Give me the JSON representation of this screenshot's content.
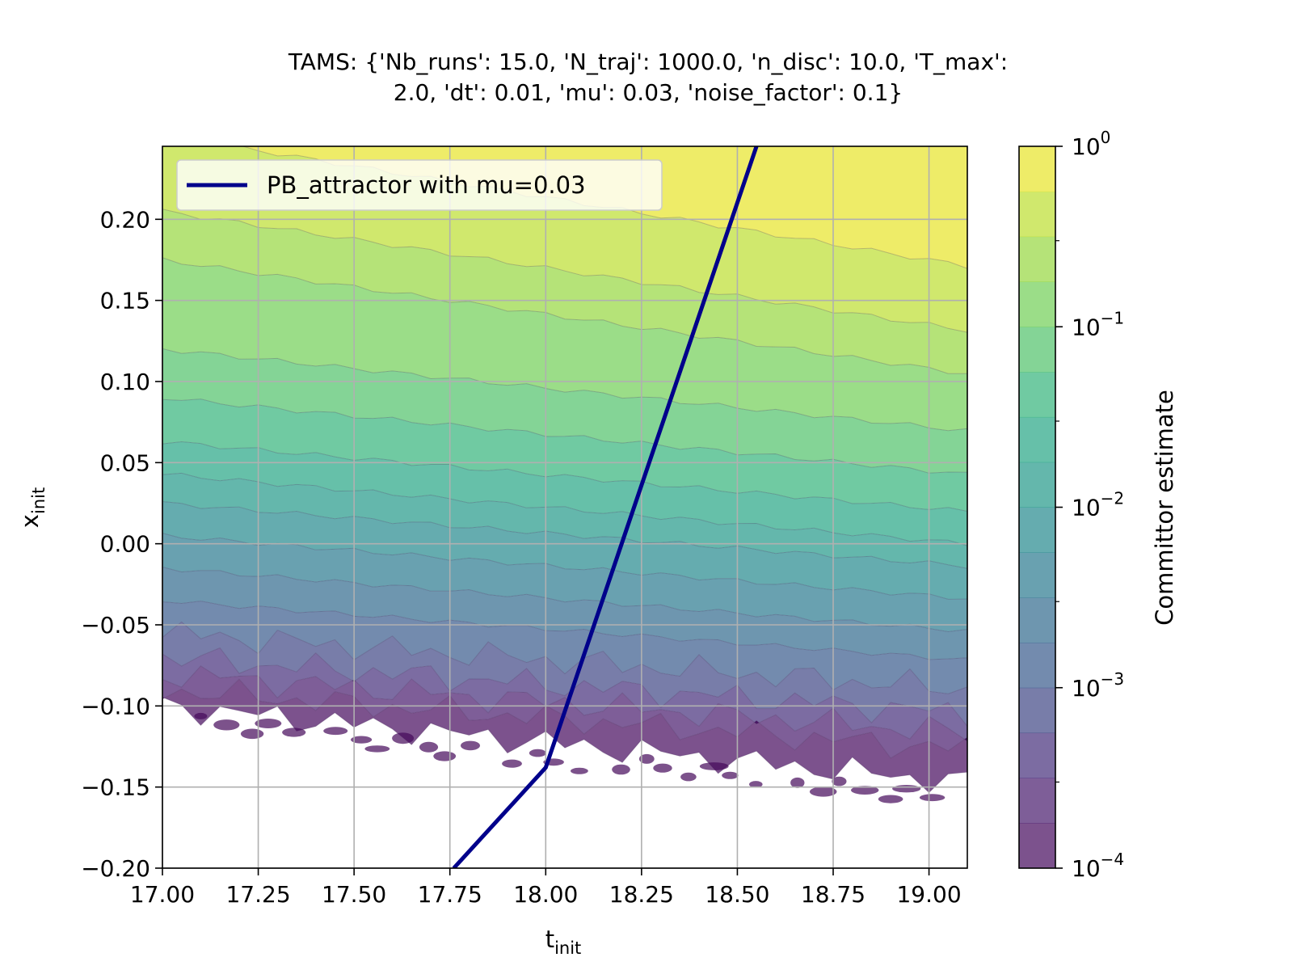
{
  "chart_data": {
    "type": "contourf",
    "title_lines": [
      "TAMS: {'Nb_runs': 15.0, 'N_traj': 1000.0, 'n_disc': 10.0, 'T_max':",
      "2.0, 'dt': 0.01, 'mu': 0.03, 'noise_factor': 0.1}"
    ],
    "xlabel": {
      "base": "t",
      "sub": "init"
    },
    "ylabel": {
      "base": "x",
      "sub": "init"
    },
    "xlim": [
      17.0,
      19.1
    ],
    "ylim": [
      -0.2,
      0.245
    ],
    "x_ticks": [
      "17.00",
      "17.25",
      "17.50",
      "17.75",
      "18.00",
      "18.25",
      "18.50",
      "18.75",
      "19.00"
    ],
    "x_tick_values": [
      17.0,
      17.25,
      17.5,
      17.75,
      18.0,
      18.25,
      18.5,
      18.75,
      19.0
    ],
    "y_ticks": [
      "−0.20",
      "−0.15",
      "−0.10",
      "−0.05",
      "0.00",
      "0.05",
      "0.10",
      "0.15",
      "0.20"
    ],
    "y_tick_values": [
      -0.2,
      -0.15,
      -0.1,
      -0.05,
      0.0,
      0.05,
      0.1,
      0.15,
      0.2
    ],
    "grid": true,
    "legend_position": "top-left",
    "series": [
      {
        "name": "PB_attractor with mu=0.03",
        "type": "line",
        "color": "#00008b",
        "x": [
          17.76,
          18.0,
          18.55
        ],
        "y": [
          -0.2,
          -0.138,
          0.245
        ]
      }
    ],
    "contour": {
      "colormap": "viridis",
      "alpha": 0.7,
      "scale": "log",
      "approx_level_boundaries": [
        {
          "log10_value": -0.25,
          "y_at_x17": 0.252,
          "y_at_x19": 0.175
        },
        {
          "log10_value": -0.5,
          "y_at_x17": 0.205,
          "y_at_x19": 0.135
        },
        {
          "log10_value": -0.75,
          "y_at_x17": 0.175,
          "y_at_x19": 0.108
        },
        {
          "log10_value": -1.0,
          "y_at_x17": 0.12,
          "y_at_x19": 0.072
        },
        {
          "log10_value": -1.25,
          "y_at_x17": 0.09,
          "y_at_x19": 0.045
        },
        {
          "log10_value": -1.5,
          "y_at_x17": 0.063,
          "y_at_x19": 0.022
        },
        {
          "log10_value": -1.75,
          "y_at_x17": 0.043,
          "y_at_x19": 0.002
        },
        {
          "log10_value": -2.0,
          "y_at_x17": 0.025,
          "y_at_x19": -0.012
        },
        {
          "log10_value": -2.25,
          "y_at_x17": 0.005,
          "y_at_x19": -0.032
        },
        {
          "log10_value": -2.5,
          "y_at_x17": -0.015,
          "y_at_x19": -0.052
        },
        {
          "log10_value": -2.75,
          "y_at_x17": -0.035,
          "y_at_x19": -0.07
        },
        {
          "log10_value": -3.0,
          "y_at_x17": -0.055,
          "y_at_x19": -0.088
        },
        {
          "log10_value": -3.25,
          "y_at_x17": -0.07,
          "y_at_x19": -0.103
        },
        {
          "log10_value": -3.5,
          "y_at_x17": -0.08,
          "y_at_x19": -0.115
        },
        {
          "log10_value": -3.75,
          "y_at_x17": -0.09,
          "y_at_x19": -0.125
        },
        {
          "log10_value": -4.0,
          "y_at_x17": -0.1,
          "y_at_x19": -0.145
        }
      ]
    },
    "colorbar": {
      "label": "Committor estimate",
      "scale": "log",
      "range": [
        0.0001,
        1
      ],
      "major_ticks": [
        {
          "base": "10",
          "exp": "0",
          "value": 1
        },
        {
          "base": "10",
          "exp": "−1",
          "value": 0.1
        },
        {
          "base": "10",
          "exp": "−2",
          "value": 0.01
        },
        {
          "base": "10",
          "exp": "−3",
          "value": 0.001
        },
        {
          "base": "10",
          "exp": "−4",
          "value": 0.0001
        }
      ],
      "minor_tick_values": [
        0.3,
        0.03,
        0.003,
        0.0003
      ]
    }
  }
}
